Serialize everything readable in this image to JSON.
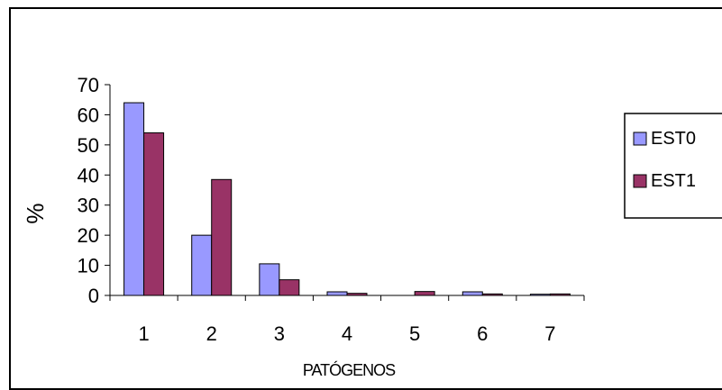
{
  "chart_data": {
    "type": "bar",
    "title": "",
    "xlabel": "PATÓGENOS",
    "ylabel": "%",
    "categories": [
      "1",
      "2",
      "3",
      "4",
      "5",
      "6",
      "7"
    ],
    "ylim": [
      0,
      70
    ],
    "yticks": [
      "0",
      "10",
      "20",
      "30",
      "40",
      "50",
      "60",
      "70"
    ],
    "grid": false,
    "legend_position": "right",
    "series": [
      {
        "name": "EST0",
        "color": "#9999ff",
        "values": [
          64,
          20,
          10.5,
          1.2,
          0,
          1.2,
          0.4
        ]
      },
      {
        "name": "EST1",
        "color": "#993366",
        "values": [
          54,
          38.5,
          5.2,
          0.7,
          1.3,
          0.5,
          0.5
        ]
      }
    ]
  }
}
